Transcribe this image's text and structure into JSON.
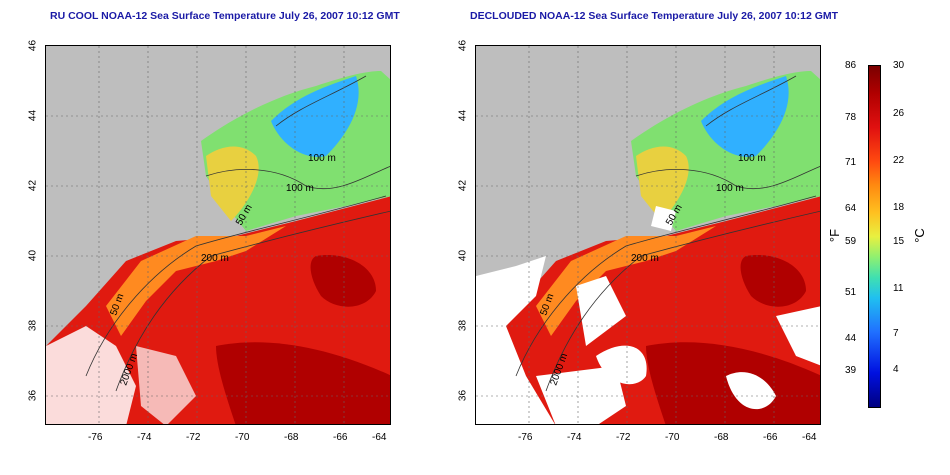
{
  "left_title": "RU COOL NOAA-12 Sea Surface Temperature July 26, 2007 10:12 GMT",
  "right_title": "DECLOUDED NOAA-12 Sea Surface Temperature July 26, 2007 10:12 GMT",
  "lat_ticks": [
    "46",
    "44",
    "42",
    "40",
    "38",
    "36"
  ],
  "lon_ticks": [
    "-76",
    "-74",
    "-72",
    "-70",
    "-68",
    "-66",
    "-64"
  ],
  "contour_labels": [
    "100 m",
    "100 m",
    "50 m",
    "200 m",
    "50 m",
    "2000 m"
  ],
  "colorbar": {
    "fahrenheit_ticks": [
      "86",
      "78",
      "71",
      "64",
      "59",
      "51",
      "44",
      "39"
    ],
    "celsius_ticks": [
      "30",
      "26",
      "22",
      "18",
      "15",
      "11",
      "7",
      "4"
    ],
    "fahrenheit_unit": "°F",
    "celsius_unit": "°C"
  },
  "colors": {
    "land": "#bebebe",
    "warm": "#e01a10",
    "hot": "#b00000",
    "shelf": "#ff8a20",
    "cool": "#80e070",
    "cold": "#30b0ff",
    "cloud": "#ffffff",
    "title": "#1a1aa6"
  }
}
